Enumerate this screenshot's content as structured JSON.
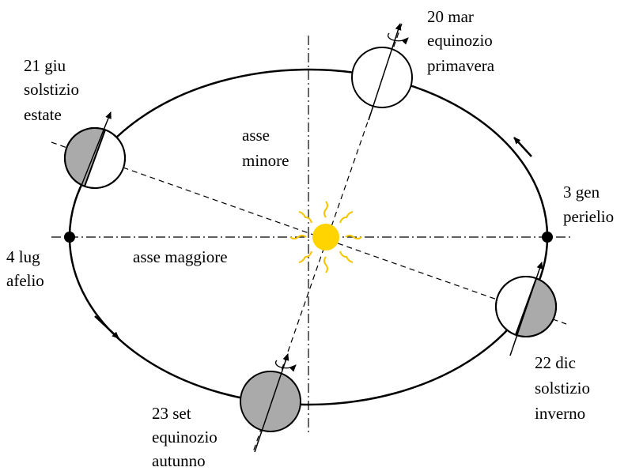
{
  "labels": {
    "spring": [
      "20 mar",
      "equinozio",
      "primavera"
    ],
    "summer": [
      "21 giu",
      "solstizio",
      "estate"
    ],
    "minor_axis": [
      "asse",
      "minore"
    ],
    "perihelion": [
      "3 gen",
      "perielio"
    ],
    "aphelion": [
      "4 lug",
      "afelio"
    ],
    "major_axis": "asse maggiore",
    "winter": [
      "22 dic",
      "solstizio",
      "inverno"
    ],
    "autumn": [
      "23 set",
      "equinozio",
      "autunno"
    ]
  }
}
